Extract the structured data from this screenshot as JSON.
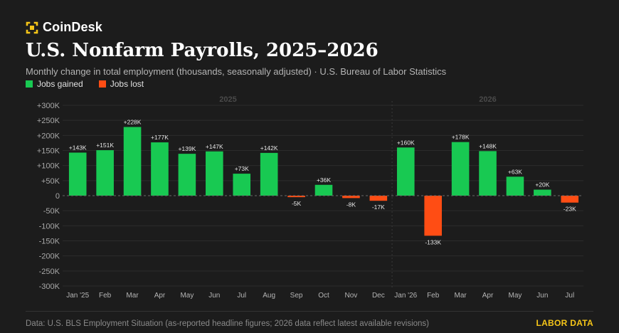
{
  "brand": {
    "name": "CoinDesk",
    "logo_icon": "coindesk-logo-icon",
    "logo_color": "#f5c518"
  },
  "title": "U.S. Nonfarm Payrolls, 2025–2026",
  "subtitle": "Monthly change in total employment (thousands, seasonally adjusted) · U.S. Bureau of Labor Statistics",
  "legend": [
    {
      "label": "Jobs gained",
      "color": "#18c952"
    },
    {
      "label": "Jobs lost",
      "color": "#ff4d14"
    }
  ],
  "chart_data": {
    "type": "bar",
    "title": "U.S. Nonfarm Payrolls, 2025–2026",
    "categories": [
      "Jan '25",
      "Feb",
      "Mar",
      "Apr",
      "May",
      "Jun",
      "Jul",
      "Aug",
      "Sep",
      "Oct",
      "Nov",
      "Dec",
      "Jan '26",
      "Feb",
      "Mar",
      "Apr",
      "May",
      "Jun",
      "Jul"
    ],
    "series": [
      {
        "name": "Jobs gained / lost",
        "values": [
          143,
          151,
          228,
          177,
          139,
          147,
          73,
          142,
          -5,
          36,
          -8,
          -17,
          160,
          -133,
          178,
          148,
          63,
          20,
          -23
        ]
      }
    ],
    "data_labels": [
      "+143K",
      "+151K",
      "+228K",
      "+177K",
      "+139K",
      "+147K",
      "+73K",
      "+142K",
      "-5K",
      "+36K",
      "-8K",
      "-17K",
      "+160K",
      "-133K",
      "+178K",
      "+148K",
      "+63K",
      "+20K",
      "-23K"
    ],
    "year_groups": [
      {
        "label": "2025",
        "start": 0,
        "end": 11
      },
      {
        "label": "2026",
        "start": 12,
        "end": 18
      }
    ],
    "yticks": [
      300,
      250,
      200,
      150,
      100,
      50,
      0,
      -50,
      -100,
      -150,
      -200,
      -250,
      -300
    ],
    "ytick_labels": [
      "+300K",
      "+250K",
      "+200K",
      "+150K",
      "+100K",
      "+50K",
      "0",
      "-50K",
      "-100K",
      "-150K",
      "-200K",
      "-250K",
      "-300K"
    ],
    "ylim": [
      -300,
      300
    ],
    "xlabel": "",
    "ylabel": "",
    "grid": true,
    "colors": {
      "positive": "#18c952",
      "negative": "#ff4d14"
    }
  },
  "footer": {
    "source": "Data: U.S. BLS Employment Situation (as-reported headline figures; 2026 data reflect latest available revisions)",
    "tag": "LABOR DATA",
    "tag_color": "#f5c518"
  }
}
